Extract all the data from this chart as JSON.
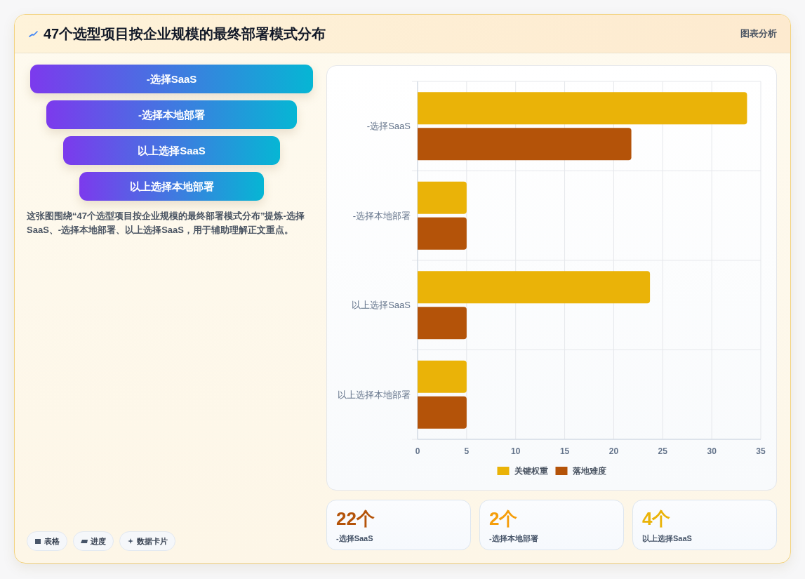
{
  "chart_data": [
    {
      "type": "other",
      "title": "47个选型项目按企业规模的最终部署模式分布",
      "subtitle": "图表分析",
      "categories": [
        "-选择SaaS",
        "-选择本地部署",
        "以上选择SaaS",
        "以上选择本地部署"
      ],
      "annotations": [
        "这张图围绕“47个选型项目按企业规模的最终部署模式分布”提炼-选择SaaS、-选择本地部署、以上选择SaaS，用于辅助理解正文重点。",
        "表格",
        "进度",
        "数据卡片"
      ]
    },
    {
      "type": "bar",
      "orientation": "horizontal",
      "categories": [
        "-选择SaaS",
        "-选择本地部署",
        "以上选择SaaS",
        "以上选择本地部署"
      ],
      "series": [
        {
          "name": "关键权重",
          "color": "#eab308",
          "values": [
            33.6,
            5,
            23.7,
            5
          ]
        },
        {
          "name": "落地难度",
          "color": "#b45309",
          "values": [
            21.8,
            5,
            5,
            5
          ]
        }
      ],
      "xlim": [
        0,
        35
      ],
      "xticks": [
        0,
        5,
        10,
        15,
        20,
        25,
        30,
        35
      ],
      "grid": true,
      "legend": "bottom"
    },
    {
      "type": "other",
      "categories": [
        "-选择SaaS",
        "-选择本地部署",
        "以上选择SaaS"
      ],
      "annotations": [
        "22个",
        "2个",
        "4个"
      ]
    }
  ]
}
